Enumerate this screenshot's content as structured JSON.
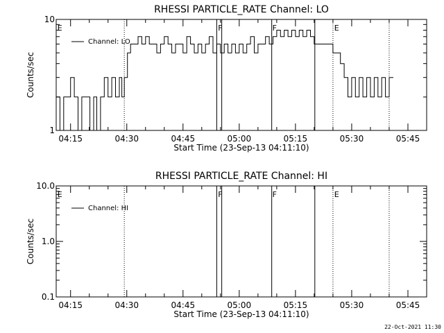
{
  "chart_data": [
    {
      "type": "line",
      "title": "RHESSI PARTICLE_RATE Channel: LO",
      "xlabel": "Start Time (23-Sep-13 04:11:10)",
      "ylabel": "Counts/sec",
      "yscale": "log",
      "ylim": [
        1,
        10
      ],
      "ytick_labels": [
        "1",
        "10"
      ],
      "xlim": [
        "04:11:10",
        "05:50:00"
      ],
      "xtick_labels": [
        "04:15",
        "04:30",
        "04:45",
        "05:00",
        "05:15",
        "05:30",
        "05:45"
      ],
      "legend": "Channel: LO",
      "legend_placement": "top-left",
      "solid_markers": [
        "04:54:00",
        "04:55:20",
        "05:08:40",
        "05:20:10"
      ],
      "dotted_markers": [
        "04:29:20",
        "05:25:00",
        "05:40:00"
      ],
      "flags": [
        {
          "time": "04:11:30",
          "label": "E"
        },
        {
          "time": "04:54:20",
          "label": "F"
        },
        {
          "time": "05:08:50",
          "label": "F"
        },
        {
          "time": "05:25:20",
          "label": "E"
        }
      ],
      "series": [
        {
          "name": "Channel: LO",
          "x": [
            "04:11:10",
            "04:12:10",
            "04:13:10",
            "04:14:00",
            "04:15:00",
            "04:16:00",
            "04:17:00",
            "04:18:00",
            "04:19:10",
            "04:20:10",
            "04:21:10",
            "04:22:00",
            "04:23:00",
            "04:24:00",
            "04:25:00",
            "04:26:00",
            "04:27:00",
            "04:28:00",
            "04:28:40",
            "04:29:20",
            "04:30:10",
            "04:31:00",
            "04:32:00",
            "04:33:00",
            "04:34:00",
            "04:35:00",
            "04:36:00",
            "04:37:00",
            "04:38:00",
            "04:39:00",
            "04:40:00",
            "04:41:00",
            "04:42:00",
            "04:43:00",
            "04:44:00",
            "04:45:00",
            "04:46:00",
            "04:47:00",
            "04:48:00",
            "04:49:00",
            "04:50:00",
            "04:51:00",
            "04:52:00",
            "04:53:00",
            "04:54:00",
            "04:55:00",
            "04:56:00",
            "04:57:00",
            "04:58:00",
            "04:59:00",
            "05:00:00",
            "05:01:00",
            "05:02:00",
            "05:03:00",
            "05:04:00",
            "05:05:00",
            "05:06:00",
            "05:07:00",
            "05:08:00",
            "05:09:00",
            "05:10:00",
            "05:11:00",
            "05:12:00",
            "05:13:00",
            "05:14:00",
            "05:15:00",
            "05:16:00",
            "05:17:00",
            "05:18:00",
            "05:19:00",
            "05:20:00",
            "05:21:00",
            "05:22:00",
            "05:23:00",
            "05:24:00",
            "05:25:00",
            "05:26:00",
            "05:27:00",
            "05:28:00",
            "05:29:00",
            "05:30:00",
            "05:31:00",
            "05:32:00",
            "05:33:00",
            "05:34:00",
            "05:35:00",
            "05:36:00",
            "05:37:00",
            "05:38:00",
            "05:39:00",
            "05:40:00"
          ],
          "y": [
            2,
            1,
            2,
            2,
            3,
            2,
            1,
            2,
            2,
            1,
            2,
            1,
            2,
            3,
            2,
            3,
            2,
            3,
            2,
            3,
            5,
            6,
            6,
            7,
            6,
            7,
            6,
            6,
            5,
            6,
            7,
            6,
            5,
            6,
            6,
            5,
            7,
            6,
            5,
            6,
            5,
            6,
            7,
            5,
            6,
            5,
            6,
            5,
            6,
            5,
            6,
            5,
            6,
            7,
            5,
            6,
            6,
            7,
            6,
            7,
            8,
            7,
            8,
            7,
            8,
            7,
            8,
            7,
            8,
            7,
            6,
            6,
            6,
            6,
            6,
            5,
            5,
            4,
            3,
            2,
            3,
            2,
            3,
            2,
            3,
            2,
            3,
            2,
            3,
            2,
            3
          ]
        }
      ]
    },
    {
      "type": "line",
      "title": "RHESSI PARTICLE_RATE Channel: HI",
      "xlabel": "Start Time (23-Sep-13 04:11:10)",
      "ylabel": "Counts/sec",
      "yscale": "log",
      "ylim": [
        0.1,
        10
      ],
      "ytick_labels": [
        "0.1",
        "1.0",
        "10.0"
      ],
      "xlim": [
        "04:11:10",
        "05:50:00"
      ],
      "xtick_labels": [
        "04:15",
        "04:30",
        "04:45",
        "05:00",
        "05:15",
        "05:30",
        "05:45"
      ],
      "legend": "Channel: HI",
      "legend_placement": "top-left",
      "solid_markers": [
        "04:54:00",
        "04:55:20",
        "05:08:40",
        "05:20:10"
      ],
      "dotted_markers": [
        "04:29:20",
        "05:25:00",
        "05:40:00"
      ],
      "flags": [
        {
          "time": "04:11:30",
          "label": "E"
        },
        {
          "time": "04:54:20",
          "label": "F"
        },
        {
          "time": "05:08:50",
          "label": "F"
        },
        {
          "time": "05:25:20",
          "label": "E"
        }
      ],
      "series": [
        {
          "name": "Channel: HI",
          "x": [],
          "y": []
        }
      ]
    }
  ],
  "timestamp": "22-Oct-2021 11:30"
}
